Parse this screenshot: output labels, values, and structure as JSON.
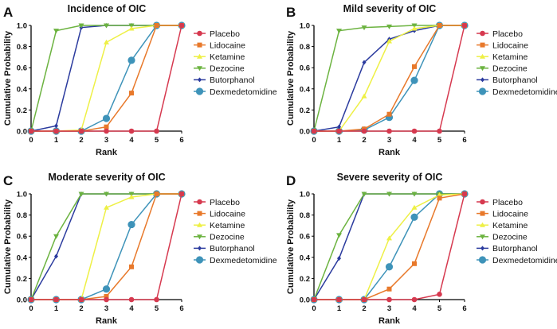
{
  "chart_data": [
    {
      "type": "line",
      "panel_label": "A",
      "title": "Incidence of OIC",
      "xlabel": "Rank",
      "ylabel": "Cumulative Probability",
      "x": [
        0,
        1,
        2,
        3,
        4,
        5,
        6
      ],
      "xticks": [
        "0",
        "1",
        "2",
        "3",
        "4",
        "5",
        "6"
      ],
      "yticks": [
        "0.0",
        "0.2",
        "0.4",
        "0.6",
        "0.8",
        "1.0"
      ],
      "xlim": [
        0,
        6
      ],
      "ylim": [
        0,
        1
      ],
      "grid": false,
      "legend": "right",
      "series": [
        {
          "name": "Placebo",
          "values": [
            0,
            0,
            0,
            0,
            0,
            0,
            1
          ]
        },
        {
          "name": "Lidocaine",
          "values": [
            0,
            0,
            0,
            0.04,
            0.36,
            1,
            1
          ]
        },
        {
          "name": "Ketamine",
          "values": [
            0,
            0,
            0.01,
            0.84,
            0.97,
            1,
            1
          ]
        },
        {
          "name": "Dezocine",
          "values": [
            0,
            0.95,
            1,
            1,
            1,
            1,
            1
          ]
        },
        {
          "name": "Butorphanol",
          "values": [
            0,
            0.05,
            0.98,
            1,
            1,
            1,
            1
          ]
        },
        {
          "name": "Dexmedetomidine",
          "values": [
            0,
            0,
            0,
            0.12,
            0.67,
            1,
            1
          ]
        }
      ]
    },
    {
      "type": "line",
      "panel_label": "B",
      "title": "Mild severity of OIC",
      "xlabel": "Rank",
      "ylabel": "Cumulative Probability",
      "x": [
        0,
        1,
        2,
        3,
        4,
        5,
        6
      ],
      "xticks": [
        "0",
        "1",
        "2",
        "3",
        "4",
        "5",
        "6"
      ],
      "yticks": [
        "0.0",
        "0.2",
        "0.4",
        "0.6",
        "0.8",
        "1.0"
      ],
      "xlim": [
        0,
        6
      ],
      "ylim": [
        0,
        1
      ],
      "grid": false,
      "legend": "right",
      "series": [
        {
          "name": "Placebo",
          "values": [
            0,
            0,
            0,
            0,
            0,
            0,
            1
          ]
        },
        {
          "name": "Lidocaine",
          "values": [
            0,
            0,
            0.02,
            0.16,
            0.61,
            1,
            1
          ]
        },
        {
          "name": "Ketamine",
          "values": [
            0,
            0,
            0.33,
            0.85,
            0.97,
            1,
            1
          ]
        },
        {
          "name": "Dezocine",
          "values": [
            0,
            0.95,
            0.98,
            0.99,
            1,
            1,
            1
          ]
        },
        {
          "name": "Butorphanol",
          "values": [
            0,
            0.04,
            0.65,
            0.87,
            0.95,
            1,
            1
          ]
        },
        {
          "name": "Dexmedetomidine",
          "values": [
            0,
            0,
            0.01,
            0.13,
            0.48,
            1,
            1
          ]
        }
      ]
    },
    {
      "type": "line",
      "panel_label": "C",
      "title": "Moderate severity of OIC",
      "xlabel": "Rank",
      "ylabel": "Cumulative Probability",
      "x": [
        0,
        1,
        2,
        3,
        4,
        5,
        6
      ],
      "xticks": [
        "0",
        "1",
        "2",
        "3",
        "4",
        "5",
        "6"
      ],
      "yticks": [
        "0.0",
        "0.2",
        "0.4",
        "0.6",
        "0.8",
        "1.0"
      ],
      "xlim": [
        0,
        6
      ],
      "ylim": [
        0,
        1
      ],
      "grid": false,
      "legend": "right",
      "series": [
        {
          "name": "Placebo",
          "values": [
            0,
            0,
            0,
            0,
            0,
            0,
            1
          ]
        },
        {
          "name": "Lidocaine",
          "values": [
            0,
            0,
            0,
            0.03,
            0.31,
            1,
            1
          ]
        },
        {
          "name": "Ketamine",
          "values": [
            0,
            0,
            0,
            0.87,
            0.97,
            1,
            1
          ]
        },
        {
          "name": "Dezocine",
          "values": [
            0,
            0.6,
            1,
            1,
            1,
            1,
            1
          ]
        },
        {
          "name": "Butorphanol",
          "values": [
            0,
            0.41,
            1,
            1,
            1,
            1,
            1
          ]
        },
        {
          "name": "Dexmedetomidine",
          "values": [
            0,
            0,
            0,
            0.1,
            0.71,
            1,
            1
          ]
        }
      ]
    },
    {
      "type": "line",
      "panel_label": "D",
      "title": "Severe severity of OIC",
      "xlabel": "Rank",
      "ylabel": "Cumulative Probability",
      "x": [
        0,
        1,
        2,
        3,
        4,
        5,
        6
      ],
      "xticks": [
        "0",
        "1",
        "2",
        "3",
        "4",
        "5",
        "6"
      ],
      "yticks": [
        "0.0",
        "0.2",
        "0.4",
        "0.6",
        "0.8",
        "1.0"
      ],
      "xlim": [
        0,
        6
      ],
      "ylim": [
        0,
        1
      ],
      "grid": false,
      "legend": "right",
      "series": [
        {
          "name": "Placebo",
          "values": [
            0,
            0,
            0,
            0,
            0,
            0.05,
            1
          ]
        },
        {
          "name": "Lidocaine",
          "values": [
            0,
            0,
            0,
            0.1,
            0.34,
            0.96,
            1
          ]
        },
        {
          "name": "Ketamine",
          "values": [
            0,
            0,
            0,
            0.58,
            0.87,
            0.99,
            1
          ]
        },
        {
          "name": "Dezocine",
          "values": [
            0,
            0.61,
            1,
            1,
            1,
            1,
            1
          ]
        },
        {
          "name": "Butorphanol",
          "values": [
            0,
            0.39,
            1,
            1,
            1,
            1,
            1
          ]
        },
        {
          "name": "Dexmedetomidine",
          "values": [
            0,
            0,
            0,
            0.31,
            0.78,
            1,
            1
          ]
        }
      ]
    }
  ],
  "series_style": [
    {
      "color": "#d6394f",
      "marker": "circle"
    },
    {
      "color": "#e8792b",
      "marker": "square"
    },
    {
      "color": "#eef045",
      "marker": "triangle-up"
    },
    {
      "color": "#6cb340",
      "marker": "triangle-down"
    },
    {
      "color": "#2b3b9e",
      "marker": "diamond"
    },
    {
      "color": "#3e93b9",
      "marker": "circle-large"
    }
  ]
}
